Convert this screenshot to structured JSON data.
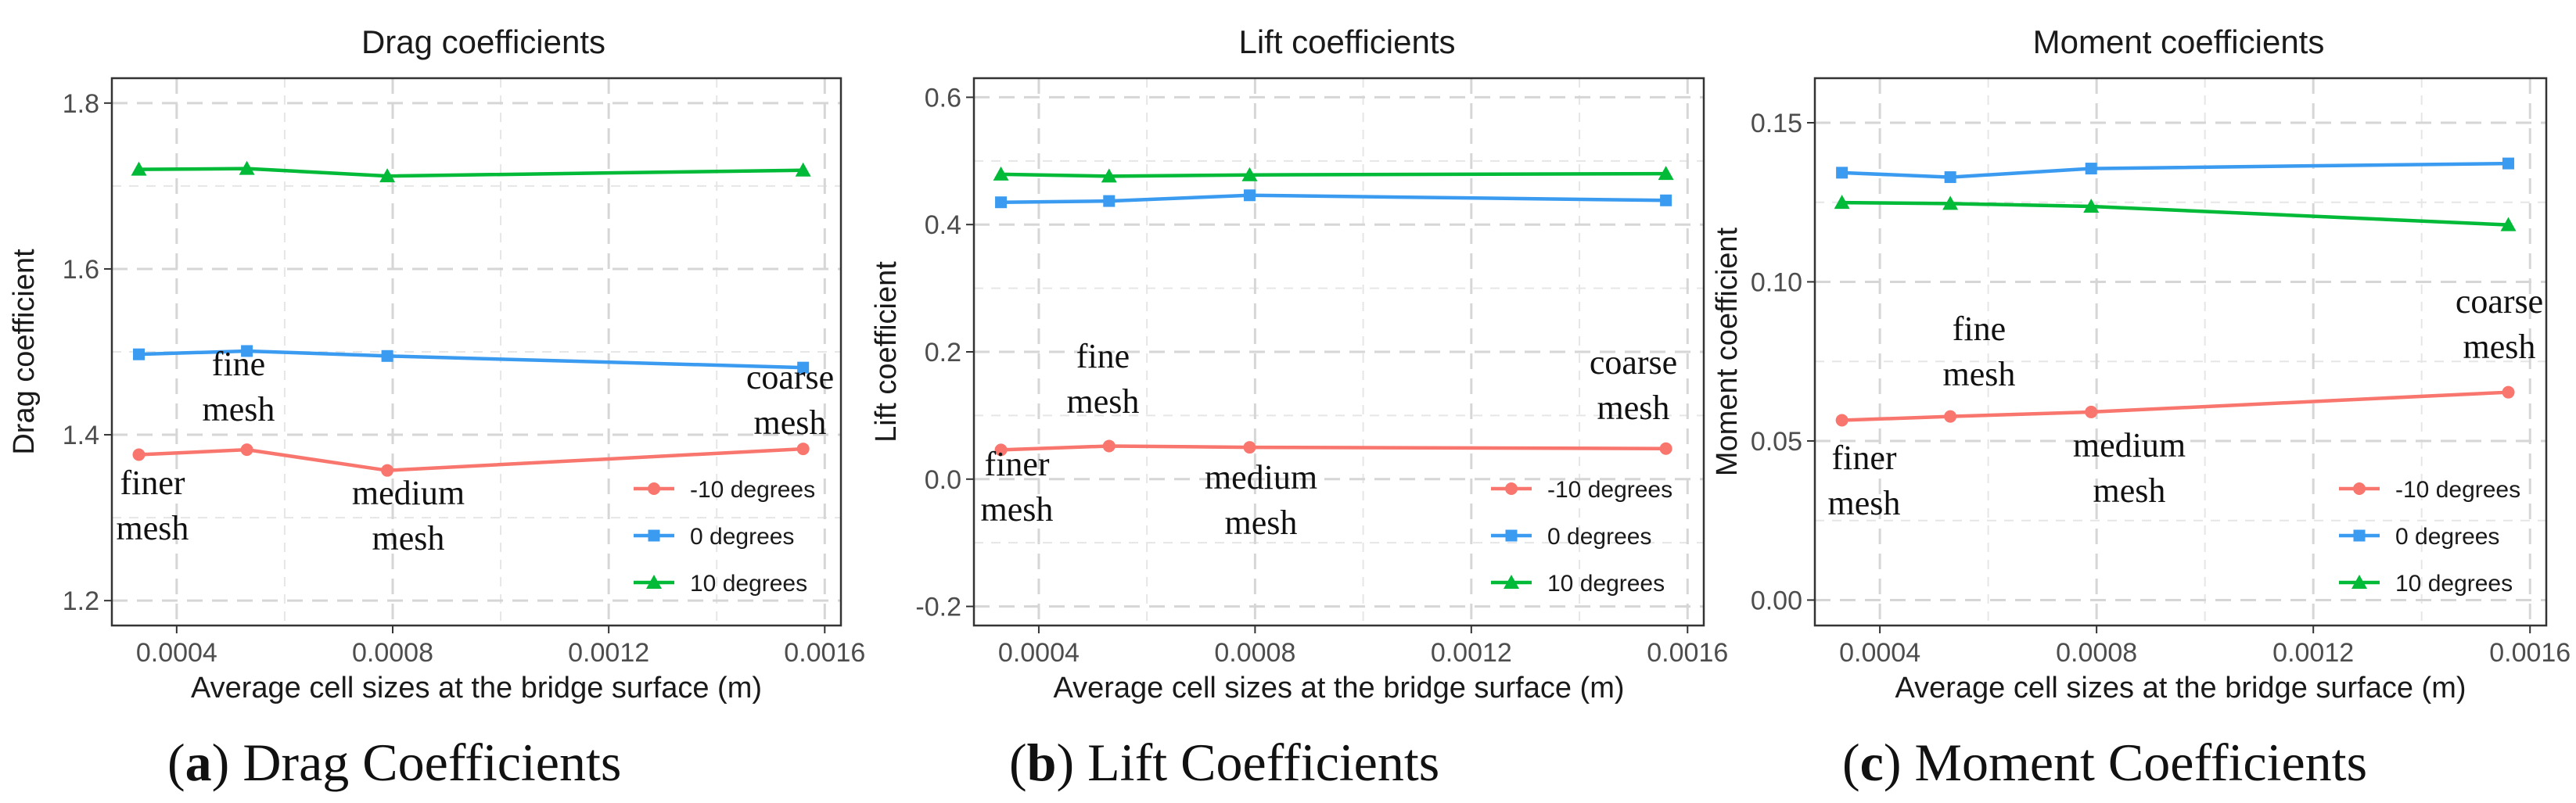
{
  "chart_data": [
    {
      "type": "line",
      "title": "Drag coefficients",
      "xlabel": "Average cell sizes at the bridge surface (m)",
      "ylabel": "Drag coefficient",
      "xlim": [
        0.00028,
        0.00163
      ],
      "ylim": [
        1.17,
        1.83
      ],
      "xticks": [
        0.0004,
        0.0008,
        0.0012,
        0.0016
      ],
      "xtick_labels": [
        "0.0004",
        "0.0008",
        "0.0012",
        "0.0016"
      ],
      "yticks": [
        1.2,
        1.4,
        1.6,
        1.8
      ],
      "ytick_labels": [
        "1.2",
        "1.4",
        "1.6",
        "1.8"
      ],
      "x": [
        0.00033,
        0.00053,
        0.00079,
        0.00156
      ],
      "series": [
        {
          "name": "-10 degrees",
          "color": "#f8766d",
          "marker": "circle",
          "values": [
            1.376,
            1.382,
            1.357,
            1.383
          ]
        },
        {
          "name": "0 degrees",
          "color": "#3b9bf0",
          "marker": "square",
          "values": [
            1.497,
            1.501,
            1.495,
            1.481
          ]
        },
        {
          "name": "10 degrees",
          "color": "#00ba38",
          "marker": "triangle",
          "values": [
            1.72,
            1.721,
            1.712,
            1.719
          ]
        }
      ],
      "annotations": [
        {
          "lines": [
            "finer",
            "mesh"
          ]
        },
        {
          "lines": [
            "fine",
            "mesh"
          ]
        },
        {
          "lines": [
            "medium",
            "mesh"
          ]
        },
        {
          "lines": [
            "coarse",
            "mesh"
          ]
        }
      ],
      "legend_position": "bottom-right",
      "grid": true,
      "caption_letter": "a",
      "caption_text": "Drag Coefficients"
    },
    {
      "type": "line",
      "title": "Lift coefficients",
      "xlabel": "Average cell sizes at the bridge surface (m)",
      "ylabel": "Lift coefficient",
      "xlim": [
        0.00028,
        0.00163
      ],
      "ylim": [
        -0.23,
        0.63
      ],
      "xticks": [
        0.0004,
        0.0008,
        0.0012,
        0.0016
      ],
      "xtick_labels": [
        "0.0004",
        "0.0008",
        "0.0012",
        "0.0016"
      ],
      "yticks": [
        -0.2,
        0.0,
        0.2,
        0.4,
        0.6
      ],
      "ytick_labels": [
        "-0.2",
        "0.0",
        "0.2",
        "0.4",
        "0.6"
      ],
      "x": [
        0.00033,
        0.00053,
        0.00079,
        0.00156
      ],
      "series": [
        {
          "name": "-10 degrees",
          "color": "#f8766d",
          "marker": "circle",
          "values": [
            0.046,
            0.052,
            0.05,
            0.048
          ]
        },
        {
          "name": "0 degrees",
          "color": "#3b9bf0",
          "marker": "square",
          "values": [
            0.435,
            0.437,
            0.446,
            0.438
          ]
        },
        {
          "name": "10 degrees",
          "color": "#00ba38",
          "marker": "triangle",
          "values": [
            0.479,
            0.476,
            0.478,
            0.48
          ]
        }
      ],
      "annotations": [
        {
          "lines": [
            "finer",
            "mesh"
          ]
        },
        {
          "lines": [
            "fine",
            "mesh"
          ]
        },
        {
          "lines": [
            "medium",
            "mesh"
          ]
        },
        {
          "lines": [
            "coarse",
            "mesh"
          ]
        }
      ],
      "legend_position": "bottom-right",
      "grid": true,
      "caption_letter": "b",
      "caption_text": "Lift Coefficients"
    },
    {
      "type": "line",
      "title": "Moment coefficients",
      "xlabel": "Average cell sizes at the bridge surface (m)",
      "ylabel": "Moment coefficient",
      "xlim": [
        0.00028,
        0.00163
      ],
      "ylim": [
        -0.008,
        0.164
      ],
      "xticks": [
        0.0004,
        0.0008,
        0.0012,
        0.0016
      ],
      "xtick_labels": [
        "0.0004",
        "0.0008",
        "0.0012",
        "0.0016"
      ],
      "yticks": [
        0.0,
        0.05,
        0.1,
        0.15
      ],
      "ytick_labels": [
        "0.00",
        "0.05",
        "0.10",
        "0.15"
      ],
      "x": [
        0.00033,
        0.00053,
        0.00079,
        0.00156
      ],
      "series": [
        {
          "name": "-10 degrees",
          "color": "#f8766d",
          "marker": "circle",
          "values": [
            0.0565,
            0.0577,
            0.0591,
            0.0653
          ]
        },
        {
          "name": "0 degrees",
          "color": "#3b9bf0",
          "marker": "square",
          "values": [
            0.1343,
            0.1329,
            0.1356,
            0.1372
          ]
        },
        {
          "name": "10 degrees",
          "color": "#00ba38",
          "marker": "triangle",
          "values": [
            0.1249,
            0.1246,
            0.1237,
            0.1179
          ]
        }
      ],
      "annotations": [
        {
          "lines": [
            "finer",
            "mesh"
          ]
        },
        {
          "lines": [
            "fine",
            "mesh"
          ]
        },
        {
          "lines": [
            "medium",
            "mesh"
          ]
        },
        {
          "lines": [
            "coarse",
            "mesh"
          ]
        }
      ],
      "legend_position": "bottom-right",
      "grid": true,
      "caption_letter": "c",
      "caption_text": "Moment Coefficients"
    }
  ]
}
